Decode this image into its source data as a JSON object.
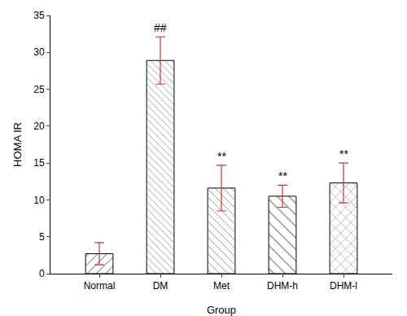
{
  "chart_data": {
    "type": "bar",
    "categories": [
      "Normal",
      "DM",
      "Met",
      "DHM-h",
      "DHM-l"
    ],
    "values": [
      2.7,
      28.9,
      11.6,
      10.5,
      12.3
    ],
    "error": [
      1.5,
      3.2,
      3.1,
      1.5,
      2.7
    ],
    "color": "#000000",
    "xlabel": "Group",
    "ylabel": "HOMA IR",
    "ylim": [
      0,
      35
    ],
    "yticks": [
      0,
      5,
      10,
      15,
      20,
      25,
      30,
      35
    ],
    "grid": false,
    "annotations": [
      {
        "category": "DM",
        "text": "##"
      },
      {
        "category": "Met",
        "text": "**"
      },
      {
        "category": "DHM-h",
        "text": "**"
      },
      {
        "category": "DHM-l",
        "text": "**"
      }
    ]
  }
}
